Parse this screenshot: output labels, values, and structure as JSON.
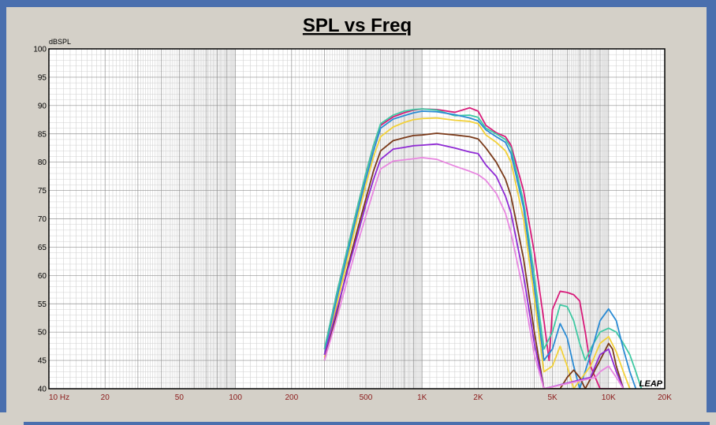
{
  "chart_data": {
    "type": "line",
    "title": "SPL vs Freq",
    "ylabel": "dBSPL",
    "xscale": "log",
    "xlim": [
      10,
      20000
    ],
    "ylim": [
      40,
      100
    ],
    "x_tick_labels": [
      {
        "value": 10,
        "label": "10  Hz"
      },
      {
        "value": 20,
        "label": "20"
      },
      {
        "value": 50,
        "label": "50"
      },
      {
        "value": 100,
        "label": "100"
      },
      {
        "value": 200,
        "label": "200"
      },
      {
        "value": 500,
        "label": "500"
      },
      {
        "value": 1000,
        "label": "1K"
      },
      {
        "value": 2000,
        "label": "2K"
      },
      {
        "value": 5000,
        "label": "5K"
      },
      {
        "value": 10000,
        "label": "10K"
      },
      {
        "value": 20000,
        "label": "20K"
      }
    ],
    "y_ticks": [
      40,
      45,
      50,
      55,
      60,
      65,
      70,
      75,
      80,
      85,
      90,
      95,
      100
    ],
    "grid": true,
    "logo": "LEAP",
    "series": [
      {
        "color": "#d81b7a",
        "points": [
          [
            300,
            47
          ],
          [
            350,
            57
          ],
          [
            400,
            65
          ],
          [
            450,
            72
          ],
          [
            500,
            78
          ],
          [
            550,
            83
          ],
          [
            600,
            86.5
          ],
          [
            700,
            88
          ],
          [
            800,
            88.7
          ],
          [
            900,
            89.2
          ],
          [
            1000,
            89.4
          ],
          [
            1200,
            89.3
          ],
          [
            1500,
            88.8
          ],
          [
            1800,
            89.6
          ],
          [
            2000,
            89.0
          ],
          [
            2200,
            86.5
          ],
          [
            2500,
            85.2
          ],
          [
            2800,
            84.5
          ],
          [
            3000,
            83.0
          ],
          [
            3500,
            75
          ],
          [
            4000,
            64
          ],
          [
            4500,
            52
          ],
          [
            4800,
            45
          ],
          [
            5000,
            54
          ],
          [
            5500,
            57.2
          ],
          [
            6000,
            57.0
          ],
          [
            6500,
            56.6
          ],
          [
            7000,
            55.5
          ],
          [
            7500,
            50
          ],
          [
            8000,
            44
          ],
          [
            9000,
            40
          ],
          [
            12000,
            40
          ]
        ]
      },
      {
        "color": "#3fc9a3",
        "points": [
          [
            300,
            47
          ],
          [
            350,
            57
          ],
          [
            400,
            65
          ],
          [
            450,
            72
          ],
          [
            500,
            78
          ],
          [
            550,
            83
          ],
          [
            600,
            86.8
          ],
          [
            700,
            88.3
          ],
          [
            800,
            89
          ],
          [
            900,
            89.3
          ],
          [
            1000,
            89.4
          ],
          [
            1200,
            89.2
          ],
          [
            1500,
            88.2
          ],
          [
            1800,
            88.3
          ],
          [
            2000,
            87.9
          ],
          [
            2200,
            86
          ],
          [
            2500,
            85
          ],
          [
            2800,
            84
          ],
          [
            3000,
            82.5
          ],
          [
            3500,
            73
          ],
          [
            4000,
            60
          ],
          [
            4500,
            47
          ],
          [
            5000,
            50
          ],
          [
            5500,
            54.8
          ],
          [
            6000,
            54.5
          ],
          [
            6500,
            52
          ],
          [
            7000,
            48
          ],
          [
            7500,
            45
          ],
          [
            8000,
            47
          ],
          [
            9000,
            50
          ],
          [
            10000,
            50.7
          ],
          [
            11000,
            50
          ],
          [
            12000,
            48
          ],
          [
            13000,
            46
          ],
          [
            14000,
            43
          ],
          [
            15000,
            40
          ]
        ]
      },
      {
        "color": "#2a8bd4",
        "points": [
          [
            300,
            46
          ],
          [
            350,
            56
          ],
          [
            400,
            64
          ],
          [
            450,
            71
          ],
          [
            500,
            77
          ],
          [
            550,
            82
          ],
          [
            600,
            86
          ],
          [
            700,
            87.6
          ],
          [
            800,
            88.2
          ],
          [
            900,
            88.7
          ],
          [
            1000,
            89.0
          ],
          [
            1200,
            88.9
          ],
          [
            1500,
            88.4
          ],
          [
            1800,
            87.8
          ],
          [
            2000,
            87.3
          ],
          [
            2200,
            85.7
          ],
          [
            2500,
            84.5
          ],
          [
            2800,
            83.5
          ],
          [
            3000,
            81.5
          ],
          [
            3500,
            72
          ],
          [
            4000,
            58
          ],
          [
            4500,
            45
          ],
          [
            5000,
            47
          ],
          [
            5500,
            51.5
          ],
          [
            6000,
            49
          ],
          [
            6500,
            44
          ],
          [
            7000,
            40
          ],
          [
            8000,
            46
          ],
          [
            9000,
            52
          ],
          [
            10000,
            54.1
          ],
          [
            11000,
            52
          ],
          [
            12000,
            47
          ],
          [
            13000,
            43
          ],
          [
            14000,
            40
          ]
        ]
      },
      {
        "color": "#f2d13a",
        "points": [
          [
            300,
            45.5
          ],
          [
            350,
            55
          ],
          [
            400,
            63
          ],
          [
            450,
            70
          ],
          [
            500,
            76
          ],
          [
            550,
            81
          ],
          [
            600,
            84.5
          ],
          [
            700,
            86.2
          ],
          [
            800,
            87.0
          ],
          [
            900,
            87.5
          ],
          [
            1000,
            87.7
          ],
          [
            1200,
            87.8
          ],
          [
            1500,
            87.4
          ],
          [
            1800,
            87.2
          ],
          [
            2000,
            86.8
          ],
          [
            2200,
            84.8
          ],
          [
            2500,
            83.5
          ],
          [
            2800,
            82
          ],
          [
            3000,
            80
          ],
          [
            3500,
            70
          ],
          [
            4000,
            56
          ],
          [
            4500,
            43
          ],
          [
            5000,
            44
          ],
          [
            5500,
            47.5
          ],
          [
            6000,
            44
          ],
          [
            6500,
            40
          ],
          [
            8000,
            44
          ],
          [
            9000,
            48
          ],
          [
            10000,
            49.2
          ],
          [
            11000,
            46.5
          ],
          [
            12000,
            43
          ],
          [
            13000,
            40
          ]
        ]
      },
      {
        "color": "#7a3a1a",
        "points": [
          [
            300,
            45
          ],
          [
            350,
            53.5
          ],
          [
            400,
            61.5
          ],
          [
            450,
            68
          ],
          [
            500,
            73.5
          ],
          [
            550,
            78.5
          ],
          [
            600,
            82
          ],
          [
            700,
            83.8
          ],
          [
            800,
            84.3
          ],
          [
            900,
            84.7
          ],
          [
            1000,
            84.8
          ],
          [
            1200,
            85.1
          ],
          [
            1500,
            84.8
          ],
          [
            1800,
            84.5
          ],
          [
            2000,
            84.1
          ],
          [
            2200,
            82.5
          ],
          [
            2500,
            80
          ],
          [
            2800,
            77
          ],
          [
            3000,
            74
          ],
          [
            3500,
            63
          ],
          [
            4000,
            50
          ],
          [
            4500,
            40
          ],
          [
            5500,
            40
          ],
          [
            6000,
            42
          ],
          [
            6500,
            43.3
          ],
          [
            7000,
            42
          ],
          [
            7500,
            40
          ],
          [
            9000,
            45
          ],
          [
            10000,
            48
          ],
          [
            10500,
            47
          ],
          [
            11000,
            44
          ],
          [
            12000,
            40
          ]
        ]
      },
      {
        "color": "#8f2ad4",
        "points": [
          [
            300,
            46
          ],
          [
            350,
            54
          ],
          [
            400,
            61
          ],
          [
            450,
            67
          ],
          [
            500,
            72.5
          ],
          [
            550,
            77
          ],
          [
            600,
            80.5
          ],
          [
            700,
            82.3
          ],
          [
            800,
            82.6
          ],
          [
            900,
            82.9
          ],
          [
            1000,
            83.0
          ],
          [
            1200,
            83.2
          ],
          [
            1500,
            82.5
          ],
          [
            1800,
            81.8
          ],
          [
            2000,
            81.5
          ],
          [
            2200,
            79.5
          ],
          [
            2500,
            77.5
          ],
          [
            2800,
            74
          ],
          [
            3000,
            71
          ],
          [
            3500,
            60
          ],
          [
            4000,
            48
          ],
          [
            4500,
            40
          ],
          [
            8000,
            42
          ],
          [
            9000,
            46
          ],
          [
            10000,
            47
          ],
          [
            11000,
            43
          ],
          [
            12000,
            40
          ]
        ]
      },
      {
        "color": "#e887e0",
        "points": [
          [
            300,
            45
          ],
          [
            350,
            52.5
          ],
          [
            400,
            59.5
          ],
          [
            450,
            65.5
          ],
          [
            500,
            70.5
          ],
          [
            550,
            75
          ],
          [
            600,
            78.8
          ],
          [
            700,
            80.2
          ],
          [
            800,
            80.4
          ],
          [
            900,
            80.6
          ],
          [
            1000,
            80.8
          ],
          [
            1200,
            80.5
          ],
          [
            1500,
            79.3
          ],
          [
            1800,
            78.4
          ],
          [
            2000,
            77.8
          ],
          [
            2200,
            76.8
          ],
          [
            2500,
            74.5
          ],
          [
            2800,
            71
          ],
          [
            3000,
            67.5
          ],
          [
            3500,
            57
          ],
          [
            4000,
            46
          ],
          [
            4500,
            40
          ],
          [
            8500,
            42
          ],
          [
            9000,
            43
          ],
          [
            10000,
            44
          ],
          [
            11000,
            42
          ],
          [
            12000,
            40
          ]
        ]
      }
    ]
  }
}
